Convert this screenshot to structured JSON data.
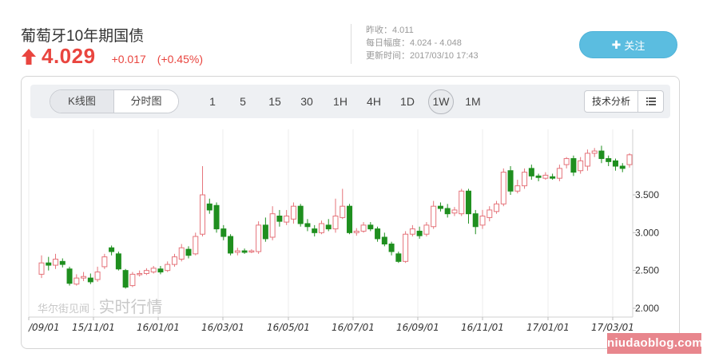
{
  "header": {
    "title": "葡萄牙10年期国债",
    "price": "4.029",
    "change": "+0.017",
    "change_pct": "(+0.45%)",
    "meta": {
      "prev_close": "昨收：4.011",
      "day_range": "每日幅度：4.024 - 4.048",
      "updated": "更新时间：2017/03/10 17:43"
    },
    "follow_label": "关注"
  },
  "toolbar": {
    "tabs": [
      "K线图",
      "分时图"
    ],
    "periods": [
      "1",
      "5",
      "15",
      "30",
      "1H",
      "4H",
      "1D",
      "1W",
      "1M"
    ],
    "active_period": "1W",
    "tech_label": "技术分析"
  },
  "watermark": {
    "brand": "华尔街见闻 · ",
    "text": "实时行情"
  },
  "site_badge": "niudaoblog.com",
  "colors": {
    "up": "#e9453f",
    "down": "#1f8f1f",
    "accent": "#5bbde0",
    "candle_up_outline": "#e5737a"
  },
  "chart_data": {
    "type": "candlestick",
    "title": "",
    "y_ticks": [
      "3.500",
      "3.000",
      "2.500",
      "2.000"
    ],
    "y_tick_values": [
      3.5,
      3.0,
      2.5,
      2.0
    ],
    "ylim": [
      1.96,
      4.18
    ],
    "x_ticks": [
      "/09/01",
      "15/11/01",
      "16/01/01",
      "16/03/01",
      "16/05/01",
      "16/07/01",
      "16/09/01",
      "16/11/01",
      "17/01/01",
      "17/03/01"
    ],
    "candles": [
      [
        2.45,
        2.6,
        2.7,
        2.4
      ],
      [
        2.6,
        2.57,
        2.68,
        2.5
      ],
      [
        2.57,
        2.65,
        2.72,
        2.52
      ],
      [
        2.62,
        2.58,
        2.66,
        2.54
      ],
      [
        2.52,
        2.33,
        2.55,
        2.3
      ],
      [
        2.32,
        2.4,
        2.45,
        2.3
      ],
      [
        2.4,
        2.42,
        2.48,
        2.36
      ],
      [
        2.4,
        2.35,
        2.46,
        2.32
      ],
      [
        2.38,
        2.48,
        2.55,
        2.35
      ],
      [
        2.55,
        2.68,
        2.72,
        2.52
      ],
      [
        2.8,
        2.75,
        2.83,
        2.7
      ],
      [
        2.72,
        2.52,
        2.75,
        2.5
      ],
      [
        2.5,
        2.28,
        2.52,
        2.26
      ],
      [
        2.3,
        2.45,
        2.48,
        2.28
      ],
      [
        2.45,
        2.46,
        2.5,
        2.42
      ],
      [
        2.46,
        2.5,
        2.53,
        2.44
      ],
      [
        2.48,
        2.53,
        2.56,
        2.46
      ],
      [
        2.52,
        2.48,
        2.56,
        2.45
      ],
      [
        2.5,
        2.58,
        2.62,
        2.48
      ],
      [
        2.58,
        2.68,
        2.72,
        2.55
      ],
      [
        2.65,
        2.8,
        2.85,
        2.62
      ],
      [
        2.78,
        2.7,
        2.82,
        2.66
      ],
      [
        2.72,
        2.95,
        3.0,
        2.7
      ],
      [
        2.98,
        3.5,
        3.88,
        2.95
      ],
      [
        3.38,
        3.3,
        3.45,
        3.25
      ],
      [
        3.36,
        3.05,
        3.4,
        3.0
      ],
      [
        3.05,
        2.95,
        3.1,
        2.9
      ],
      [
        2.95,
        2.73,
        2.98,
        2.7
      ],
      [
        2.74,
        2.76,
        2.8,
        2.7
      ],
      [
        2.76,
        2.74,
        2.79,
        2.72
      ],
      [
        2.75,
        2.76,
        2.78,
        2.73
      ],
      [
        2.75,
        3.1,
        3.15,
        2.72
      ],
      [
        3.1,
        2.92,
        3.2,
        2.88
      ],
      [
        2.94,
        3.25,
        3.35,
        2.9
      ],
      [
        3.22,
        3.15,
        3.3,
        3.08
      ],
      [
        3.14,
        3.22,
        3.3,
        3.1
      ],
      [
        3.18,
        3.35,
        3.4,
        3.12
      ],
      [
        3.35,
        3.12,
        3.38,
        3.08
      ],
      [
        3.12,
        3.08,
        3.18,
        3.02
      ],
      [
        3.05,
        3.0,
        3.1,
        2.95
      ],
      [
        3.0,
        3.12,
        3.16,
        2.98
      ],
      [
        3.1,
        3.05,
        3.18,
        3.02
      ],
      [
        3.05,
        3.22,
        3.45,
        3.0
      ],
      [
        3.2,
        3.35,
        3.58,
        3.18
      ],
      [
        3.35,
        3.0,
        3.38,
        2.98
      ],
      [
        3.0,
        3.02,
        3.06,
        2.96
      ],
      [
        3.02,
        3.1,
        3.14,
        3.0
      ],
      [
        3.1,
        3.05,
        3.14,
        3.02
      ],
      [
        3.05,
        2.92,
        3.08,
        2.88
      ],
      [
        2.94,
        2.85,
        3.0,
        2.82
      ],
      [
        2.85,
        2.75,
        2.88,
        2.7
      ],
      [
        2.72,
        2.62,
        2.75,
        2.6
      ],
      [
        2.62,
        2.98,
        3.02,
        2.6
      ],
      [
        2.98,
        3.05,
        3.1,
        2.95
      ],
      [
        3.02,
        2.96,
        3.08,
        2.92
      ],
      [
        2.98,
        3.1,
        3.14,
        2.95
      ],
      [
        3.08,
        3.35,
        3.42,
        3.05
      ],
      [
        3.35,
        3.32,
        3.4,
        3.28
      ],
      [
        3.32,
        3.25,
        3.38,
        3.2
      ],
      [
        3.26,
        3.3,
        3.34,
        3.22
      ],
      [
        3.25,
        3.55,
        3.58,
        3.22
      ],
      [
        3.55,
        3.25,
        3.58,
        3.12
      ],
      [
        3.25,
        3.08,
        3.3,
        2.98
      ],
      [
        3.1,
        3.22,
        3.3,
        3.05
      ],
      [
        3.2,
        3.3,
        3.35,
        3.15
      ],
      [
        3.28,
        3.38,
        3.42,
        3.25
      ],
      [
        3.38,
        3.8,
        3.85,
        3.35
      ],
      [
        3.82,
        3.55,
        3.88,
        3.5
      ],
      [
        3.55,
        3.62,
        3.7,
        3.52
      ],
      [
        3.62,
        3.8,
        3.85,
        3.58
      ],
      [
        3.85,
        3.75,
        3.9,
        3.7
      ],
      [
        3.75,
        3.73,
        3.78,
        3.68
      ],
      [
        3.72,
        3.76,
        3.8,
        3.7
      ],
      [
        3.74,
        3.72,
        3.78,
        3.7
      ],
      [
        3.72,
        3.85,
        3.9,
        3.68
      ],
      [
        3.9,
        3.98,
        4.0,
        3.85
      ],
      [
        3.98,
        3.8,
        4.02,
        3.75
      ],
      [
        3.82,
        3.95,
        4.0,
        3.78
      ],
      [
        3.88,
        4.05,
        4.1,
        3.82
      ],
      [
        4.05,
        4.08,
        4.12,
        4.0
      ],
      [
        4.08,
        3.98,
        4.15,
        3.92
      ],
      [
        3.98,
        3.94,
        4.02,
        3.88
      ],
      [
        3.95,
        3.88,
        3.98,
        3.82
      ],
      [
        3.88,
        3.85,
        3.92,
        3.8
      ],
      [
        3.9,
        4.03,
        4.05,
        3.86
      ]
    ]
  }
}
